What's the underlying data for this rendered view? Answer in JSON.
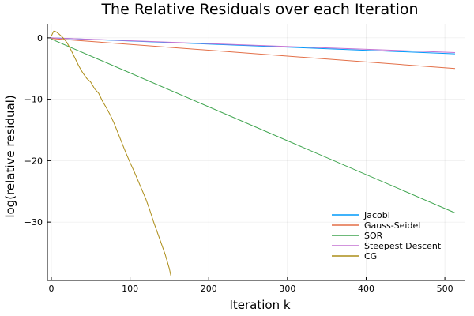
{
  "chart_data": {
    "type": "line",
    "title": "The Relative Residuals over each Iteration",
    "xlabel": "Iteration k",
    "ylabel": "log(relative residual)",
    "xlim": [
      -5,
      525
    ],
    "ylim": [
      -39.5,
      2.3
    ],
    "xticks": [
      0,
      100,
      200,
      300,
      400,
      500
    ],
    "yticks": [
      0,
      -10,
      -20,
      -30
    ],
    "grid": true,
    "legend_position": "bottom-right",
    "series": [
      {
        "name": "Jacobi",
        "color": "#009AFA",
        "x": [
          0,
          513
        ],
        "y": [
          0,
          -2.6
        ]
      },
      {
        "name": "Gauss-Seidel",
        "color": "#E36F47",
        "x": [
          0,
          513
        ],
        "y": [
          -0.1,
          -5.0
        ]
      },
      {
        "name": "SOR",
        "color": "#3EA44E",
        "x": [
          0,
          513
        ],
        "y": [
          -0.2,
          -28.5
        ]
      },
      {
        "name": "Steepest Descent",
        "color": "#C371D2",
        "x": [
          0,
          513
        ],
        "y": [
          0,
          -2.4
        ]
      },
      {
        "name": "CG",
        "color": "#AC8D18",
        "x": [
          0,
          3,
          6,
          10,
          15,
          20,
          25,
          30,
          35,
          40,
          45,
          50,
          55,
          60,
          65,
          70,
          75,
          80,
          85,
          90,
          95,
          100,
          105,
          110,
          115,
          120,
          125,
          130,
          135,
          140,
          145,
          150,
          152
        ],
        "y": [
          0.3,
          1.1,
          1.0,
          0.6,
          0.0,
          -0.8,
          -2.0,
          -3.3,
          -4.6,
          -5.7,
          -6.6,
          -7.2,
          -8.3,
          -9.0,
          -10.3,
          -11.4,
          -12.6,
          -14.0,
          -15.6,
          -17.2,
          -18.8,
          -20.3,
          -21.7,
          -23.2,
          -24.7,
          -26.2,
          -28.0,
          -30.0,
          -31.8,
          -33.6,
          -35.4,
          -37.6,
          -38.8
        ]
      }
    ]
  }
}
